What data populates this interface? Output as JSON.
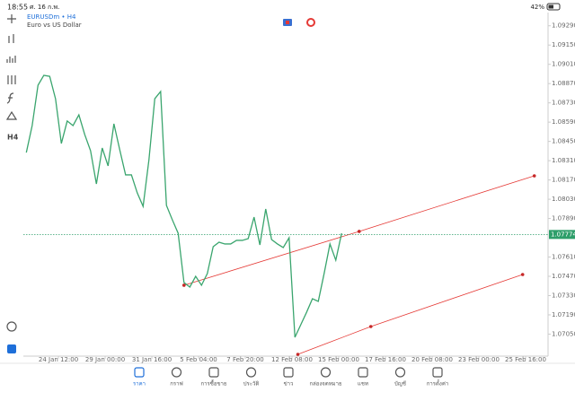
{
  "status_bar": {
    "time": "18:55",
    "date": "ศ. 16 ก.พ.",
    "battery": "42%"
  },
  "toolbar": {
    "timeframe": "H4"
  },
  "chart_data": {
    "type": "line",
    "title": "EURUSDm • H4",
    "subtitle": "Euro vs US Dollar",
    "xlim": [
      -11.4,
      167.7
    ],
    "ylim": [
      1.0689,
      1.0936
    ],
    "xticks": [
      {
        "value": 0,
        "label": "24 Jan 12:00"
      },
      {
        "value": 16,
        "label": "29 Jan 00:00"
      },
      {
        "value": 32,
        "label": "31 Jan 16:00"
      },
      {
        "value": 48,
        "label": "5 Feb 04:00"
      },
      {
        "value": 64,
        "label": "7 Feb 20:00"
      },
      {
        "value": 80,
        "label": "12 Feb 08:00"
      },
      {
        "value": 96,
        "label": "15 Feb 00:00"
      },
      {
        "value": 112,
        "label": "17 Feb 16:00"
      },
      {
        "value": 128,
        "label": "20 Feb 08:00"
      },
      {
        "value": 144,
        "label": "23 Feb 00:00"
      },
      {
        "value": 160,
        "label": "25 Feb 16:00"
      }
    ],
    "yticks": [
      {
        "value": 1.0929,
        "label": "1.09290"
      },
      {
        "value": 1.0915,
        "label": "1.09150"
      },
      {
        "value": 1.0901,
        "label": "1.09010"
      },
      {
        "value": 1.0887,
        "label": "1.08870"
      },
      {
        "value": 1.0873,
        "label": "1.08730"
      },
      {
        "value": 1.0859,
        "label": "1.08590"
      },
      {
        "value": 1.0845,
        "label": "1.08450"
      },
      {
        "value": 1.0831,
        "label": "1.08310"
      },
      {
        "value": 1.0817,
        "label": "1.08170"
      },
      {
        "value": 1.0803,
        "label": "1.08030"
      },
      {
        "value": 1.0789,
        "label": "1.07890"
      },
      {
        "value": 1.0761,
        "label": "1.07610"
      },
      {
        "value": 1.0747,
        "label": "1.07470"
      },
      {
        "value": 1.0733,
        "label": "1.07330"
      },
      {
        "value": 1.0719,
        "label": "1.07190"
      },
      {
        "value": 1.0705,
        "label": "1.07050"
      }
    ],
    "current_price": {
      "value": 1.07774,
      "label": "1.07774",
      "color": "#2e9e6a"
    },
    "series": [
      {
        "color": "#3aa56e",
        "x": [
          -11,
          -9,
          -7,
          -5,
          -3,
          -1,
          1,
          3,
          5,
          7,
          9,
          11,
          13,
          15,
          17,
          19,
          21,
          23,
          25,
          27,
          29,
          31,
          33,
          35,
          37,
          39,
          41,
          43,
          45,
          47,
          49,
          51,
          53,
          55,
          57,
          59,
          61,
          63,
          65,
          67,
          69,
          71,
          73,
          75,
          77,
          79,
          81,
          83,
          85,
          87,
          89,
          91,
          93,
          95,
          97
        ],
        "values": [
          1.08369,
          1.08565,
          1.08858,
          1.0893,
          1.08923,
          1.0876,
          1.08435,
          1.08598,
          1.08565,
          1.08643,
          1.085,
          1.08382,
          1.08141,
          1.08402,
          1.08272,
          1.08578,
          1.08389,
          1.08207,
          1.08207,
          1.08076,
          1.07978,
          1.08317,
          1.0876,
          1.08813,
          1.07985,
          1.07881,
          1.07783,
          1.07425,
          1.07392,
          1.0747,
          1.07405,
          1.0749,
          1.07685,
          1.07718,
          1.07705,
          1.07705,
          1.07731,
          1.07731,
          1.07744,
          1.079,
          1.07698,
          1.07959,
          1.07737,
          1.07705,
          1.07679,
          1.0775,
          1.07027,
          1.07118,
          1.07209,
          1.07307,
          1.07288,
          1.0749,
          1.07705,
          1.07587,
          1.07783
        ]
      }
    ],
    "trendlines": [
      {
        "color": "#e53935",
        "x": [
          43,
          103,
          163
        ],
        "values": [
          1.07405,
          1.07796,
          1.082
        ]
      },
      {
        "color": "#e53935",
        "x": [
          82,
          107,
          159
        ],
        "values": [
          1.06903,
          1.07105,
          1.07483
        ]
      }
    ]
  },
  "nav": [
    "ราคา",
    "กราฟ",
    "การซื้อขาย",
    "ประวัติ",
    "ข่าว",
    "กล่องจดหมาย",
    "แชท",
    "บัญชี",
    "การตั้งค่า"
  ]
}
